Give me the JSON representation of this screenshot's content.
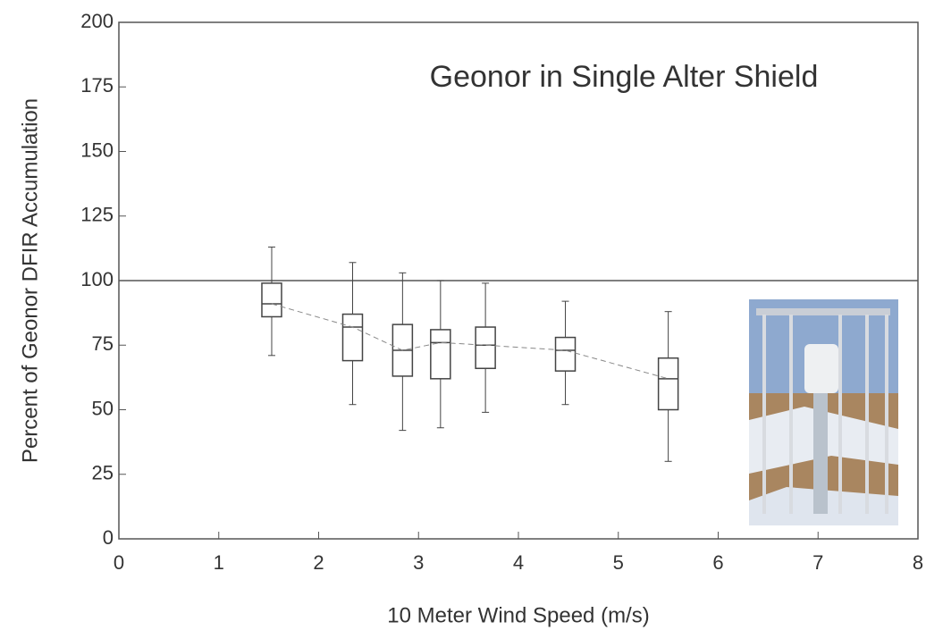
{
  "chart_data": {
    "type": "box",
    "title": "Geonor in Single Alter Shield",
    "xlabel": "10 Meter Wind Speed (m/s)",
    "ylabel": "Percent of Geonor DFIR Accumulation",
    "x": [
      1.53,
      2.34,
      2.84,
      3.22,
      3.67,
      4.47,
      5.5
    ],
    "whislo": [
      71,
      52,
      42,
      43,
      49,
      52,
      30
    ],
    "q1": [
      86,
      69,
      63,
      62,
      66,
      65,
      50
    ],
    "med": [
      91,
      82,
      73,
      76,
      75,
      73,
      62
    ],
    "q3": [
      99,
      87,
      83,
      81,
      82,
      78,
      70
    ],
    "whishi": [
      113,
      107,
      103,
      100,
      99,
      92,
      88
    ],
    "reference_line": 100,
    "color": "#444444",
    "xlim": [
      0,
      8
    ],
    "xticks": [
      0,
      1,
      2,
      3,
      4,
      5,
      6,
      7,
      8
    ],
    "ylim": [
      0,
      200
    ],
    "yticks": [
      0,
      25,
      50,
      75,
      100,
      125,
      150,
      175,
      200
    ]
  }
}
